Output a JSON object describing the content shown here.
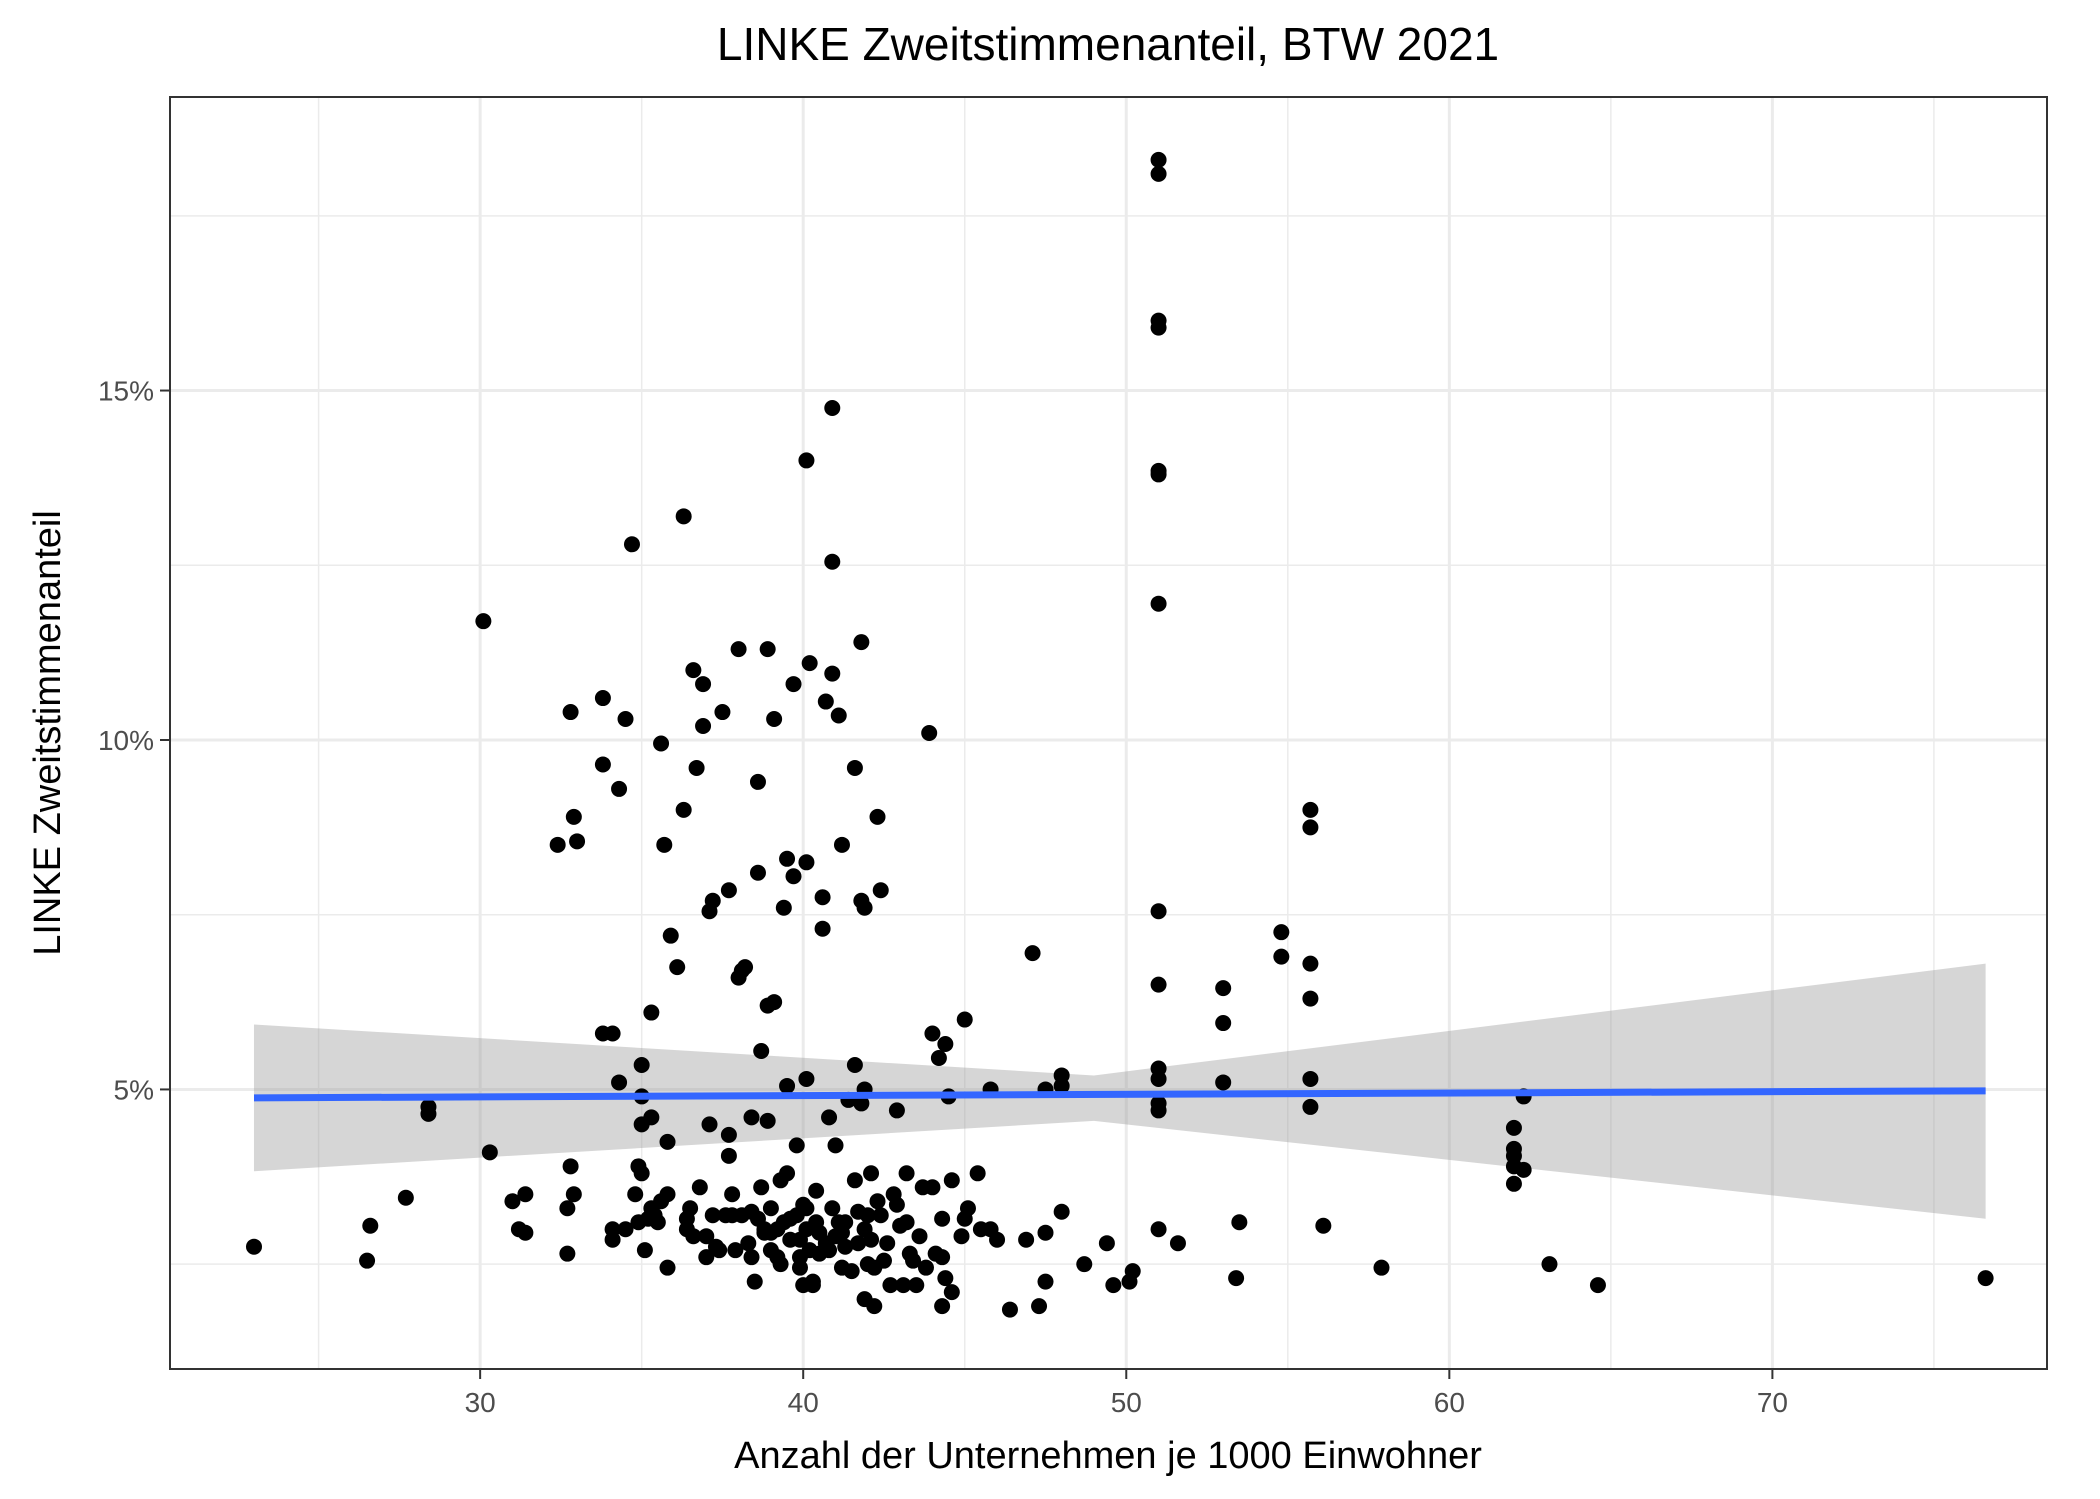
{
  "chart_data": {
    "type": "scatter",
    "title": "LINKE Zweitstimmenanteil, BTW 2021",
    "xlabel": "Anzahl der Unternehmen je 1000 Einwohner",
    "ylabel": "LINKE Zweitstimmenanteil",
    "xlim": [
      20.4,
      78.5
    ],
    "ylim": [
      1.0,
      19.2
    ],
    "x_ticks": [
      30,
      40,
      50,
      60,
      70
    ],
    "x_tick_labels": [
      "30",
      "40",
      "50",
      "60",
      "70"
    ],
    "y_ticks": [
      5,
      10,
      15
    ],
    "y_tick_labels": [
      "5%",
      "10%",
      "15%"
    ],
    "grid": true,
    "legend": "none",
    "colors": {
      "points": "#000000",
      "fit_line": "#3366FF",
      "confidence_band": "#999999",
      "grid": "#ebebeb",
      "panel_border": "#333333"
    },
    "fit_line": {
      "x": [
        23.0,
        76.6
      ],
      "y": [
        4.88,
        4.98
      ]
    },
    "confidence_band": {
      "x": [
        23.0,
        49.0,
        76.6
      ],
      "lower": [
        3.83,
        4.55,
        3.15
      ],
      "upper": [
        5.93,
        5.2,
        6.8
      ]
    },
    "points": [
      [
        23.0,
        2.75
      ],
      [
        26.6,
        3.05
      ],
      [
        26.5,
        2.55
      ],
      [
        27.7,
        3.45
      ],
      [
        28.4,
        4.75
      ],
      [
        28.4,
        4.65
      ],
      [
        30.1,
        11.7
      ],
      [
        30.3,
        4.1
      ],
      [
        31.0,
        3.4
      ],
      [
        31.2,
        3.0
      ],
      [
        31.4,
        3.5
      ],
      [
        31.4,
        2.95
      ],
      [
        32.4,
        8.5
      ],
      [
        32.7,
        3.3
      ],
      [
        32.7,
        2.65
      ],
      [
        32.8,
        3.9
      ],
      [
        32.8,
        10.4
      ],
      [
        32.9,
        3.5
      ],
      [
        32.9,
        8.9
      ],
      [
        33.0,
        8.55
      ],
      [
        33.8,
        5.8
      ],
      [
        33.8,
        9.65
      ],
      [
        33.8,
        10.6
      ],
      [
        34.1,
        5.8
      ],
      [
        34.1,
        3.0
      ],
      [
        34.1,
        2.85
      ],
      [
        34.3,
        5.1
      ],
      [
        34.3,
        9.3
      ],
      [
        34.5,
        10.3
      ],
      [
        34.5,
        3.0
      ],
      [
        34.7,
        12.8
      ],
      [
        34.8,
        3.5
      ],
      [
        34.9,
        3.9
      ],
      [
        34.9,
        3.1
      ],
      [
        35.0,
        4.9
      ],
      [
        35.0,
        3.8
      ],
      [
        35.0,
        5.35
      ],
      [
        35.0,
        4.5
      ],
      [
        35.1,
        2.7
      ],
      [
        35.2,
        3.15
      ],
      [
        35.3,
        3.3
      ],
      [
        35.3,
        4.6
      ],
      [
        35.3,
        6.1
      ],
      [
        35.4,
        3.2
      ],
      [
        35.5,
        3.1
      ],
      [
        35.6,
        9.95
      ],
      [
        35.6,
        3.4
      ],
      [
        35.7,
        8.5
      ],
      [
        35.8,
        4.25
      ],
      [
        35.8,
        3.5
      ],
      [
        35.8,
        2.45
      ],
      [
        35.9,
        7.2
      ],
      [
        36.1,
        6.75
      ],
      [
        36.3,
        9.0
      ],
      [
        36.3,
        13.2
      ],
      [
        36.4,
        3.15
      ],
      [
        36.4,
        3.0
      ],
      [
        36.5,
        3.3
      ],
      [
        36.6,
        2.9
      ],
      [
        36.6,
        11.0
      ],
      [
        36.7,
        9.6
      ],
      [
        36.8,
        3.6
      ],
      [
        36.9,
        10.8
      ],
      [
        36.9,
        10.2
      ],
      [
        37.0,
        2.9
      ],
      [
        37.0,
        2.6
      ],
      [
        37.1,
        7.55
      ],
      [
        37.1,
        4.5
      ],
      [
        37.2,
        3.2
      ],
      [
        37.2,
        7.7
      ],
      [
        37.3,
        2.75
      ],
      [
        37.4,
        2.7
      ],
      [
        37.5,
        10.4
      ],
      [
        37.6,
        3.2
      ],
      [
        37.7,
        7.85
      ],
      [
        37.7,
        4.05
      ],
      [
        37.7,
        4.35
      ],
      [
        37.8,
        3.5
      ],
      [
        37.8,
        3.2
      ],
      [
        37.9,
        2.7
      ],
      [
        38.0,
        11.3
      ],
      [
        38.0,
        6.6
      ],
      [
        38.1,
        3.2
      ],
      [
        38.1,
        6.7
      ],
      [
        38.2,
        6.75
      ],
      [
        38.3,
        2.8
      ],
      [
        38.4,
        3.25
      ],
      [
        38.4,
        2.6
      ],
      [
        38.4,
        4.6
      ],
      [
        38.5,
        2.25
      ],
      [
        38.6,
        3.15
      ],
      [
        38.6,
        9.4
      ],
      [
        38.6,
        8.1
      ],
      [
        38.7,
        5.55
      ],
      [
        38.7,
        3.6
      ],
      [
        38.8,
        3.0
      ],
      [
        38.8,
        2.95
      ],
      [
        38.9,
        11.3
      ],
      [
        38.9,
        4.55
      ],
      [
        38.9,
        6.2
      ],
      [
        39.0,
        3.3
      ],
      [
        39.0,
        2.95
      ],
      [
        39.0,
        2.7
      ],
      [
        39.1,
        6.25
      ],
      [
        39.1,
        10.3
      ],
      [
        39.2,
        3.0
      ],
      [
        39.2,
        2.6
      ],
      [
        39.3,
        3.7
      ],
      [
        39.3,
        2.5
      ],
      [
        39.4,
        7.6
      ],
      [
        39.4,
        3.1
      ],
      [
        39.5,
        8.3
      ],
      [
        39.5,
        5.05
      ],
      [
        39.5,
        3.8
      ],
      [
        39.6,
        3.15
      ],
      [
        39.6,
        2.85
      ],
      [
        39.7,
        10.8
      ],
      [
        39.7,
        8.05
      ],
      [
        39.8,
        4.2
      ],
      [
        39.8,
        3.2
      ],
      [
        39.9,
        2.85
      ],
      [
        39.9,
        2.6
      ],
      [
        39.9,
        2.45
      ],
      [
        40.0,
        3.35
      ],
      [
        40.0,
        2.2
      ],
      [
        40.1,
        8.25
      ],
      [
        40.1,
        14.0
      ],
      [
        40.1,
        3.3
      ],
      [
        40.1,
        3.0
      ],
      [
        40.1,
        5.15
      ],
      [
        40.2,
        11.1
      ],
      [
        40.2,
        2.7
      ],
      [
        40.3,
        2.25
      ],
      [
        40.3,
        2.2
      ],
      [
        40.4,
        3.55
      ],
      [
        40.4,
        3.1
      ],
      [
        40.5,
        2.95
      ],
      [
        40.5,
        2.65
      ],
      [
        40.6,
        7.3
      ],
      [
        40.6,
        7.75
      ],
      [
        40.7,
        10.55
      ],
      [
        40.7,
        2.8
      ],
      [
        40.8,
        4.6
      ],
      [
        40.8,
        2.7
      ],
      [
        40.9,
        14.75
      ],
      [
        40.9,
        12.55
      ],
      [
        40.9,
        10.95
      ],
      [
        40.9,
        3.3
      ],
      [
        41.0,
        4.2
      ],
      [
        41.0,
        2.9
      ],
      [
        41.1,
        10.35
      ],
      [
        41.1,
        3.1
      ],
      [
        41.2,
        8.5
      ],
      [
        41.2,
        2.45
      ],
      [
        41.2,
        2.95
      ],
      [
        41.3,
        2.75
      ],
      [
        41.3,
        3.1
      ],
      [
        41.4,
        4.85
      ],
      [
        41.5,
        2.4
      ],
      [
        41.6,
        5.35
      ],
      [
        41.6,
        3.7
      ],
      [
        41.6,
        9.6
      ],
      [
        41.7,
        3.25
      ],
      [
        41.7,
        2.8
      ],
      [
        41.8,
        4.8
      ],
      [
        41.8,
        7.7
      ],
      [
        41.8,
        11.4
      ],
      [
        41.9,
        7.6
      ],
      [
        41.9,
        5.0
      ],
      [
        41.9,
        2.0
      ],
      [
        41.9,
        3.0
      ],
      [
        42.0,
        2.5
      ],
      [
        42.0,
        3.2
      ],
      [
        42.1,
        3.8
      ],
      [
        42.1,
        2.85
      ],
      [
        42.2,
        1.9
      ],
      [
        42.2,
        2.45
      ],
      [
        42.3,
        8.9
      ],
      [
        42.3,
        3.4
      ],
      [
        42.4,
        7.85
      ],
      [
        42.4,
        3.2
      ],
      [
        42.5,
        2.55
      ],
      [
        42.6,
        2.8
      ],
      [
        42.7,
        2.2
      ],
      [
        42.8,
        3.5
      ],
      [
        42.9,
        4.7
      ],
      [
        42.9,
        3.35
      ],
      [
        43.0,
        3.05
      ],
      [
        43.1,
        2.2
      ],
      [
        43.2,
        3.8
      ],
      [
        43.2,
        3.1
      ],
      [
        43.3,
        2.65
      ],
      [
        43.4,
        2.55
      ],
      [
        43.5,
        2.2
      ],
      [
        43.6,
        2.9
      ],
      [
        43.7,
        3.6
      ],
      [
        43.8,
        2.45
      ],
      [
        43.9,
        10.1
      ],
      [
        44.0,
        5.8
      ],
      [
        44.0,
        3.6
      ],
      [
        44.1,
        2.65
      ],
      [
        44.2,
        5.45
      ],
      [
        44.3,
        3.15
      ],
      [
        44.3,
        2.6
      ],
      [
        44.3,
        1.9
      ],
      [
        44.4,
        5.65
      ],
      [
        44.4,
        2.3
      ],
      [
        44.5,
        4.9
      ],
      [
        44.6,
        2.1
      ],
      [
        44.6,
        3.7
      ],
      [
        44.9,
        2.9
      ],
      [
        45.0,
        6.0
      ],
      [
        45.0,
        3.15
      ],
      [
        45.1,
        3.3
      ],
      [
        45.4,
        3.8
      ],
      [
        45.5,
        3.0
      ],
      [
        45.8,
        5.0
      ],
      [
        45.8,
        3.0
      ],
      [
        46.0,
        2.85
      ],
      [
        46.4,
        1.85
      ],
      [
        46.9,
        2.85
      ],
      [
        47.1,
        6.95
      ],
      [
        47.3,
        1.9
      ],
      [
        47.5,
        5.0
      ],
      [
        47.5,
        2.95
      ],
      [
        47.5,
        2.25
      ],
      [
        48.0,
        5.05
      ],
      [
        48.0,
        5.2
      ],
      [
        48.0,
        3.25
      ],
      [
        48.7,
        2.5
      ],
      [
        49.4,
        2.8
      ],
      [
        49.6,
        2.2
      ],
      [
        50.1,
        2.25
      ],
      [
        50.2,
        2.4
      ],
      [
        51.0,
        18.3
      ],
      [
        51.0,
        18.1
      ],
      [
        51.0,
        16.0
      ],
      [
        51.0,
        15.9
      ],
      [
        51.0,
        13.8
      ],
      [
        51.0,
        13.85
      ],
      [
        51.0,
        11.95
      ],
      [
        51.0,
        7.55
      ],
      [
        51.0,
        6.5
      ],
      [
        51.0,
        5.3
      ],
      [
        51.0,
        5.15
      ],
      [
        51.0,
        4.8
      ],
      [
        51.0,
        4.7
      ],
      [
        51.0,
        3.0
      ],
      [
        51.6,
        2.8
      ],
      [
        53.0,
        6.45
      ],
      [
        53.0,
        5.95
      ],
      [
        53.0,
        5.1
      ],
      [
        53.4,
        2.3
      ],
      [
        53.5,
        3.1
      ],
      [
        54.8,
        7.25
      ],
      [
        54.8,
        6.9
      ],
      [
        55.7,
        9.0
      ],
      [
        55.7,
        8.75
      ],
      [
        55.7,
        6.8
      ],
      [
        55.7,
        6.3
      ],
      [
        55.7,
        5.15
      ],
      [
        55.7,
        4.75
      ],
      [
        56.1,
        3.05
      ],
      [
        57.9,
        2.45
      ],
      [
        62.0,
        4.45
      ],
      [
        62.0,
        4.15
      ],
      [
        62.0,
        4.05
      ],
      [
        62.0,
        3.9
      ],
      [
        62.0,
        3.65
      ],
      [
        62.3,
        4.9
      ],
      [
        62.3,
        3.85
      ],
      [
        63.1,
        2.5
      ],
      [
        64.6,
        2.2
      ],
      [
        76.6,
        2.3
      ]
    ]
  }
}
